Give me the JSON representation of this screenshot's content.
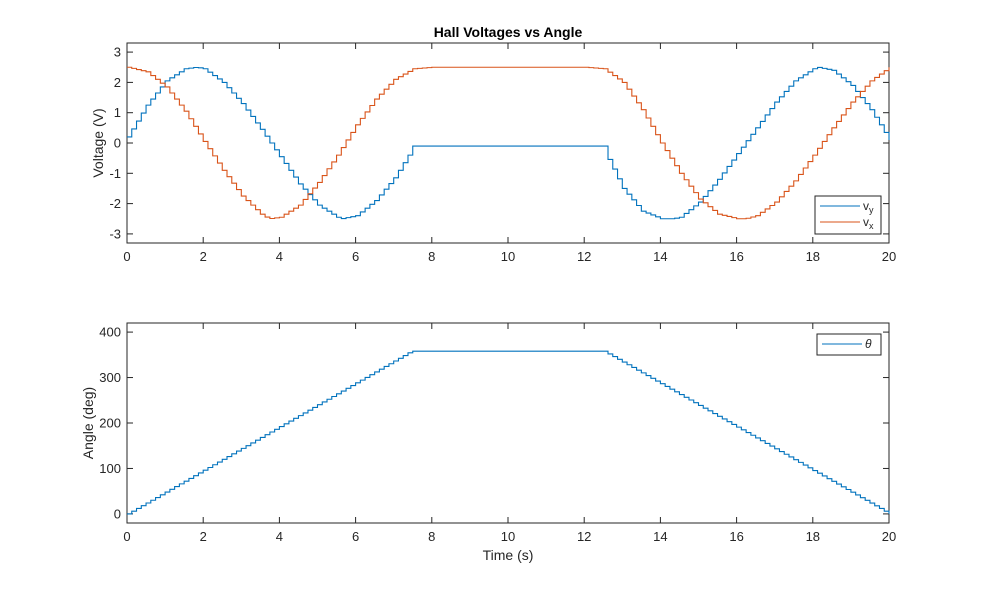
{
  "chart_data": [
    {
      "type": "line",
      "title": "Hall Voltages vs Angle",
      "xlabel": "",
      "ylabel": "Voltage (V)",
      "xlim": [
        0,
        20
      ],
      "ylim": [
        -3.3,
        3.3
      ],
      "xticks": [
        0,
        2,
        4,
        6,
        8,
        10,
        12,
        14,
        16,
        18,
        20
      ],
      "yticks": [
        -3,
        -2,
        -1,
        0,
        1,
        2,
        3
      ],
      "grid": false,
      "legend_location": "bottom-right",
      "series": [
        {
          "name": "v_y",
          "legend_main": "v",
          "legend_sub": "y",
          "color": "#0072BD",
          "x": [
            0,
            0.5,
            1.0,
            1.5,
            1.8,
            2.0,
            2.5,
            3.0,
            3.5,
            4.0,
            4.5,
            5.0,
            5.5,
            5.6,
            6.0,
            6.5,
            7.0,
            7.4,
            7.45,
            7.5,
            10.0,
            12.5,
            12.55,
            13.0,
            13.5,
            14.0,
            14.3,
            14.5,
            15.0,
            15.5,
            16.0,
            16.5,
            17.0,
            17.5,
            18.0,
            18.1,
            18.5,
            19.0,
            19.5,
            20.0
          ],
          "y": [
            0.2,
            1.25,
            2.05,
            2.45,
            2.5,
            2.45,
            2.0,
            1.3,
            0.45,
            -0.45,
            -1.35,
            -2.05,
            -2.45,
            -2.5,
            -2.4,
            -1.9,
            -1.15,
            -0.35,
            -0.1,
            -0.1,
            -0.1,
            -0.1,
            -0.35,
            -1.5,
            -2.25,
            -2.5,
            -2.5,
            -2.45,
            -1.95,
            -1.2,
            -0.35,
            0.5,
            1.35,
            2.05,
            2.45,
            2.5,
            2.4,
            1.9,
            1.1,
            0.1
          ]
        },
        {
          "name": "v_x",
          "legend_main": "v",
          "legend_sub": "x",
          "color": "#D95319",
          "x": [
            0,
            0.5,
            1.0,
            1.5,
            2.0,
            2.5,
            3.0,
            3.5,
            3.7,
            4.0,
            4.5,
            5.0,
            5.5,
            6.0,
            6.5,
            7.0,
            7.5,
            8.0,
            10.0,
            12.0,
            12.5,
            13.0,
            13.5,
            14.0,
            14.5,
            15.0,
            15.5,
            16.0,
            16.2,
            16.5,
            17.0,
            17.5,
            18.0,
            18.5,
            19.0,
            19.5,
            20.0
          ],
          "y": [
            2.5,
            2.35,
            1.85,
            1.05,
            0.05,
            -0.9,
            -1.75,
            -2.35,
            -2.5,
            -2.45,
            -2.05,
            -1.3,
            -0.4,
            0.6,
            1.45,
            2.1,
            2.45,
            2.5,
            2.5,
            2.5,
            2.45,
            2.0,
            1.1,
            0.0,
            -1.0,
            -1.85,
            -2.35,
            -2.5,
            -2.5,
            -2.4,
            -1.95,
            -1.25,
            -0.4,
            0.5,
            1.35,
            2.05,
            2.5
          ]
        }
      ]
    },
    {
      "type": "line",
      "title": "",
      "xlabel": "Time (s)",
      "ylabel": "Angle (deg)",
      "xlim": [
        0,
        20
      ],
      "ylim": [
        -20,
        420
      ],
      "xticks": [
        0,
        2,
        4,
        6,
        8,
        10,
        12,
        14,
        16,
        18,
        20
      ],
      "yticks": [
        0,
        100,
        200,
        300,
        400
      ],
      "grid": false,
      "legend_location": "top-right",
      "series": [
        {
          "name": "θ",
          "legend_main": "θ",
          "legend_sub": "",
          "color": "#0072BD",
          "x": [
            0,
            7.45,
            12.5,
            20.0
          ],
          "y": [
            0,
            358,
            358,
            0
          ]
        }
      ]
    }
  ]
}
